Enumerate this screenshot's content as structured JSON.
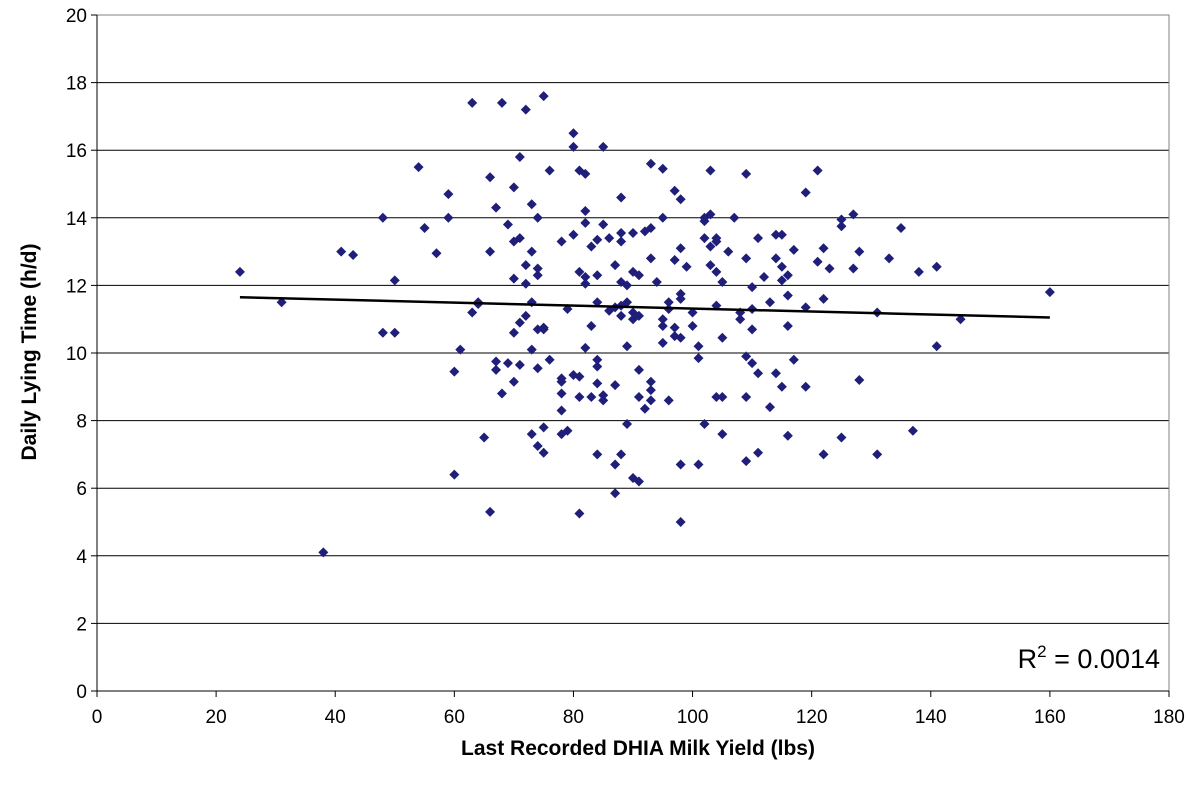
{
  "chart_data": {
    "type": "scatter",
    "xlabel": "Last Recorded DHIA Milk Yield (lbs)",
    "ylabel": "Daily Lying Time (h/d)",
    "xlim": [
      0,
      180
    ],
    "ylim": [
      0,
      20
    ],
    "x_ticks": [
      "0",
      "20",
      "40",
      "60",
      "80",
      "100",
      "120",
      "140",
      "160",
      "180"
    ],
    "y_ticks": [
      "0",
      "2",
      "4",
      "6",
      "8",
      "10",
      "12",
      "14",
      "16",
      "18",
      "20"
    ],
    "grid": "horizontal",
    "marker_color": "#1F1F7A",
    "trendline": {
      "x": [
        24,
        160
      ],
      "y": [
        11.65,
        11.05
      ],
      "color": "#000000"
    },
    "annotation": {
      "base": "R",
      "superscript": "2",
      "text": " = 0.0014"
    },
    "points": [
      [
        24,
        12.4
      ],
      [
        31,
        11.5
      ],
      [
        38,
        4.1
      ],
      [
        41,
        13.0
      ],
      [
        43,
        12.9
      ],
      [
        48,
        10.6
      ],
      [
        48,
        14.0
      ],
      [
        50,
        10.6
      ],
      [
        50,
        12.15
      ],
      [
        54,
        15.5
      ],
      [
        55,
        13.7
      ],
      [
        57,
        12.95
      ],
      [
        59,
        14.7
      ],
      [
        59,
        14.0
      ],
      [
        60,
        9.45
      ],
      [
        60,
        6.4
      ],
      [
        61,
        10.1
      ],
      [
        63,
        11.2
      ],
      [
        63,
        17.4
      ],
      [
        64,
        11.45
      ],
      [
        64,
        11.5
      ],
      [
        65,
        7.5
      ],
      [
        66,
        13.0
      ],
      [
        66,
        15.2
      ],
      [
        66,
        5.3
      ],
      [
        67,
        9.5
      ],
      [
        67,
        14.3
      ],
      [
        67,
        9.75
      ],
      [
        68,
        8.8
      ],
      [
        68,
        17.4
      ],
      [
        69,
        9.7
      ],
      [
        69,
        13.8
      ],
      [
        70,
        12.2
      ],
      [
        70,
        10.6
      ],
      [
        70,
        9.15
      ],
      [
        70,
        13.3
      ],
      [
        70,
        14.9
      ],
      [
        71,
        10.9
      ],
      [
        71,
        13.4
      ],
      [
        71,
        15.8
      ],
      [
        71,
        9.65
      ],
      [
        72,
        12.05
      ],
      [
        72,
        11.1
      ],
      [
        72,
        17.2
      ],
      [
        72,
        12.6
      ],
      [
        73,
        14.4
      ],
      [
        73,
        11.5
      ],
      [
        73,
        13.0
      ],
      [
        73,
        10.1
      ],
      [
        73,
        7.6
      ],
      [
        74,
        12.3
      ],
      [
        74,
        12.5
      ],
      [
        74,
        14.0
      ],
      [
        74,
        9.55
      ],
      [
        74,
        10.7
      ],
      [
        74,
        7.25
      ],
      [
        75,
        17.6
      ],
      [
        75,
        10.7
      ],
      [
        75,
        7.8
      ],
      [
        75,
        10.75
      ],
      [
        75,
        7.05
      ],
      [
        76,
        15.4
      ],
      [
        76,
        9.8
      ],
      [
        78,
        13.3
      ],
      [
        78,
        9.15
      ],
      [
        78,
        9.25
      ],
      [
        78,
        8.8
      ],
      [
        78,
        7.6
      ],
      [
        78,
        8.3
      ],
      [
        79,
        11.3
      ],
      [
        79,
        7.7
      ],
      [
        80,
        16.5
      ],
      [
        80,
        16.1
      ],
      [
        80,
        13.5
      ],
      [
        80,
        9.35
      ],
      [
        81,
        8.7
      ],
      [
        81,
        12.4
      ],
      [
        81,
        15.4
      ],
      [
        81,
        9.3
      ],
      [
        81,
        5.25
      ],
      [
        82,
        15.3
      ],
      [
        82,
        14.2
      ],
      [
        82,
        13.85
      ],
      [
        82,
        12.25
      ],
      [
        82,
        10.15
      ],
      [
        82,
        12.05
      ],
      [
        83,
        13.15
      ],
      [
        83,
        10.8
      ],
      [
        83,
        8.7
      ],
      [
        84,
        13.35
      ],
      [
        84,
        12.3
      ],
      [
        84,
        11.5
      ],
      [
        84,
        9.6
      ],
      [
        84,
        9.8
      ],
      [
        84,
        9.1
      ],
      [
        84,
        7.0
      ],
      [
        85,
        16.1
      ],
      [
        85,
        13.8
      ],
      [
        85,
        8.75
      ],
      [
        85,
        8.6
      ],
      [
        86,
        13.4
      ],
      [
        86,
        11.25
      ],
      [
        87,
        12.6
      ],
      [
        87,
        11.35
      ],
      [
        87,
        9.05
      ],
      [
        87,
        6.7
      ],
      [
        87,
        5.85
      ],
      [
        88,
        14.6
      ],
      [
        88,
        13.55
      ],
      [
        88,
        13.3
      ],
      [
        88,
        12.1
      ],
      [
        88,
        11.4
      ],
      [
        88,
        11.1
      ],
      [
        88,
        7.0
      ],
      [
        89,
        10.2
      ],
      [
        89,
        7.9
      ],
      [
        89,
        12.0
      ],
      [
        89,
        11.5
      ],
      [
        90,
        13.55
      ],
      [
        90,
        12.4
      ],
      [
        90,
        11.2
      ],
      [
        90,
        11.0
      ],
      [
        90,
        6.3
      ],
      [
        91,
        12.3
      ],
      [
        91,
        11.1
      ],
      [
        91,
        9.5
      ],
      [
        91,
        8.7
      ],
      [
        91,
        6.2
      ],
      [
        92,
        13.6
      ],
      [
        92,
        8.35
      ],
      [
        93,
        15.6
      ],
      [
        93,
        13.7
      ],
      [
        93,
        12.8
      ],
      [
        93,
        9.15
      ],
      [
        93,
        8.9
      ],
      [
        93,
        8.6
      ],
      [
        94,
        12.1
      ],
      [
        95,
        15.45
      ],
      [
        95,
        14.0
      ],
      [
        95,
        11.0
      ],
      [
        95,
        10.8
      ],
      [
        95,
        10.3
      ],
      [
        96,
        11.5
      ],
      [
        96,
        11.3
      ],
      [
        96,
        8.6
      ],
      [
        97,
        14.8
      ],
      [
        97,
        12.75
      ],
      [
        97,
        10.75
      ],
      [
        97,
        10.5
      ],
      [
        98,
        14.55
      ],
      [
        98,
        13.1
      ],
      [
        98,
        11.75
      ],
      [
        98,
        11.6
      ],
      [
        98,
        10.45
      ],
      [
        98,
        6.7
      ],
      [
        98,
        5.0
      ],
      [
        99,
        12.55
      ],
      [
        100,
        11.2
      ],
      [
        100,
        10.8
      ],
      [
        101,
        10.2
      ],
      [
        101,
        9.85
      ],
      [
        101,
        6.7
      ],
      [
        102,
        14.0
      ],
      [
        102,
        13.9
      ],
      [
        102,
        13.4
      ],
      [
        102,
        7.9
      ],
      [
        103,
        15.4
      ],
      [
        103,
        14.1
      ],
      [
        103,
        13.15
      ],
      [
        103,
        12.6
      ],
      [
        104,
        13.4
      ],
      [
        104,
        13.3
      ],
      [
        104,
        12.4
      ],
      [
        104,
        11.4
      ],
      [
        104,
        8.7
      ],
      [
        105,
        12.1
      ],
      [
        105,
        10.45
      ],
      [
        105,
        8.7
      ],
      [
        105,
        7.6
      ],
      [
        106,
        13.0
      ],
      [
        107,
        14.0
      ],
      [
        108,
        11.2
      ],
      [
        108,
        11.0
      ],
      [
        109,
        15.3
      ],
      [
        109,
        12.8
      ],
      [
        109,
        9.9
      ],
      [
        109,
        8.7
      ],
      [
        109,
        6.8
      ],
      [
        110,
        11.95
      ],
      [
        110,
        10.7
      ],
      [
        110,
        9.7
      ],
      [
        110,
        11.3
      ],
      [
        111,
        13.4
      ],
      [
        111,
        9.4
      ],
      [
        111,
        7.05
      ],
      [
        112,
        12.25
      ],
      [
        113,
        11.5
      ],
      [
        113,
        8.4
      ],
      [
        114,
        13.5
      ],
      [
        114,
        12.8
      ],
      [
        114,
        9.4
      ],
      [
        115,
        13.5
      ],
      [
        115,
        12.55
      ],
      [
        115,
        12.15
      ],
      [
        115,
        9.0
      ],
      [
        116,
        12.3
      ],
      [
        116,
        11.7
      ],
      [
        116,
        10.8
      ],
      [
        116,
        7.55
      ],
      [
        117,
        13.05
      ],
      [
        117,
        9.8
      ],
      [
        119,
        14.75
      ],
      [
        119,
        11.35
      ],
      [
        119,
        9.0
      ],
      [
        121,
        15.4
      ],
      [
        121,
        12.7
      ],
      [
        122,
        13.1
      ],
      [
        122,
        11.6
      ],
      [
        122,
        7.0
      ],
      [
        123,
        12.5
      ],
      [
        125,
        13.95
      ],
      [
        125,
        13.75
      ],
      [
        125,
        7.5
      ],
      [
        127,
        14.1
      ],
      [
        127,
        12.5
      ],
      [
        128,
        13.0
      ],
      [
        128,
        9.2
      ],
      [
        131,
        11.2
      ],
      [
        131,
        7.0
      ],
      [
        133,
        12.8
      ],
      [
        135,
        13.7
      ],
      [
        137,
        7.7
      ],
      [
        138,
        12.4
      ],
      [
        141,
        12.55
      ],
      [
        141,
        10.2
      ],
      [
        145,
        11.0
      ],
      [
        160,
        11.8
      ]
    ]
  }
}
